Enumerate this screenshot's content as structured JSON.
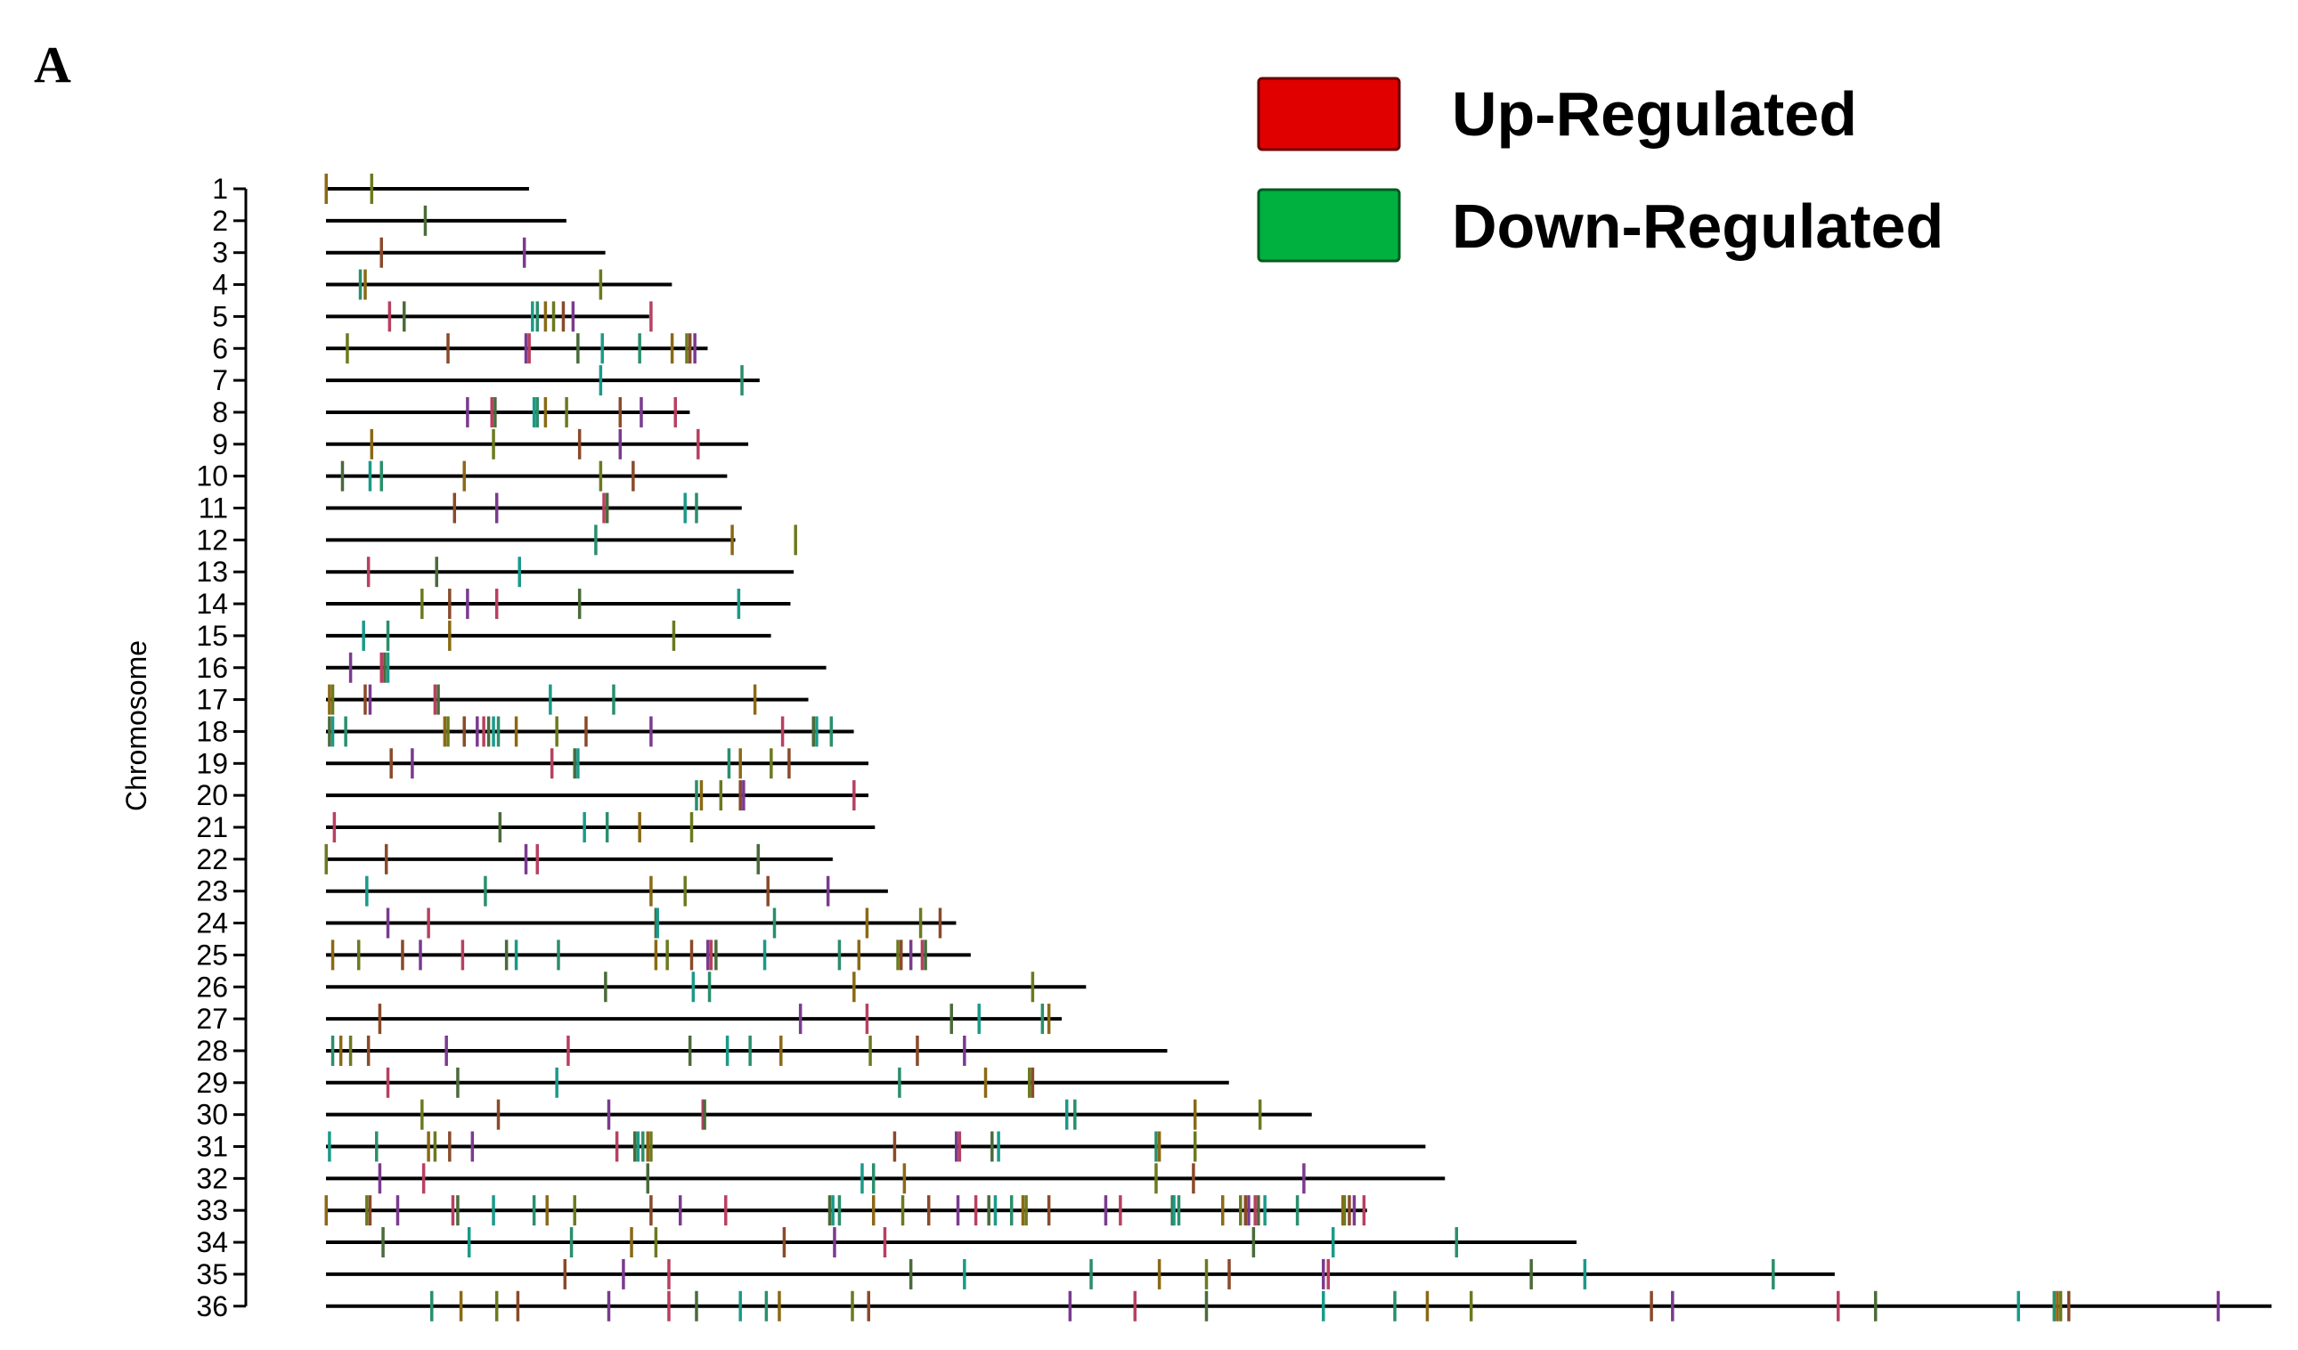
{
  "panel_label": "A",
  "legend": [
    {
      "label": "Up-Regulated",
      "color": "#e00000"
    },
    {
      "label": "Down-Regulated",
      "color": "#00b140"
    }
  ],
  "chart_data": {
    "type": "chromosome-map",
    "title": "",
    "xlabel": "",
    "ylabel": "Chromosome",
    "grid": false,
    "legend_position": "top-right",
    "colors": {
      "up": "#e00000",
      "down": "#00b140",
      "other": [
        "#8b6914",
        "#7a3b8f",
        "#1a9a8a",
        "#6b7a1f",
        "#b84060",
        "#2a8f6a",
        "#8a4a2a",
        "#4a6b3a"
      ]
    },
    "x_range": [
      0,
      1.2
    ],
    "chromosomes": [
      {
        "label": "1",
        "length": 0.125,
        "markers": [
          0.0,
          0.028
        ]
      },
      {
        "label": "2",
        "length": 0.148,
        "markers": [
          0.061
        ]
      },
      {
        "label": "3",
        "length": 0.172,
        "markers": [
          0.034,
          0.122
        ]
      },
      {
        "label": "4",
        "length": 0.213,
        "markers": [
          0.021,
          0.024,
          0.169
        ]
      },
      {
        "label": "5",
        "length": 0.199,
        "markers": [
          0.039,
          0.048,
          0.127,
          0.13,
          0.135,
          0.14,
          0.146,
          0.152,
          0.2
        ]
      },
      {
        "label": "6",
        "length": 0.235,
        "markers": [
          0.013,
          0.075,
          0.123,
          0.125,
          0.155,
          0.17,
          0.193,
          0.213,
          0.222,
          0.224,
          0.227
        ]
      },
      {
        "label": "7",
        "length": 0.267,
        "markers": [
          0.169,
          0.256
        ]
      },
      {
        "label": "8",
        "length": 0.224,
        "markers": [
          0.087,
          0.102,
          0.104,
          0.128,
          0.13,
          0.135,
          0.148,
          0.181,
          0.194,
          0.215
        ]
      },
      {
        "label": "9",
        "length": 0.26,
        "markers": [
          0.028,
          0.103,
          0.156,
          0.181,
          0.229
        ]
      },
      {
        "label": "10",
        "length": 0.247,
        "markers": [
          0.01,
          0.027,
          0.034,
          0.085,
          0.169,
          0.189
        ]
      },
      {
        "label": "11",
        "length": 0.256,
        "markers": [
          0.079,
          0.105,
          0.171,
          0.173,
          0.221,
          0.228
        ]
      },
      {
        "label": "12",
        "length": 0.252,
        "markers": [
          0.166,
          0.25,
          0.289
        ]
      },
      {
        "label": "13",
        "length": 0.288,
        "markers": [
          0.026,
          0.068,
          0.119
        ]
      },
      {
        "label": "14",
        "length": 0.286,
        "markers": [
          0.059,
          0.076,
          0.087,
          0.105,
          0.156,
          0.254
        ]
      },
      {
        "label": "15",
        "length": 0.274,
        "markers": [
          0.023,
          0.038,
          0.076,
          0.214
        ]
      },
      {
        "label": "16",
        "length": 0.308,
        "markers": [
          0.015,
          0.034,
          0.036,
          0.038
        ]
      },
      {
        "label": "17",
        "length": 0.297,
        "markers": [
          0.002,
          0.004,
          0.024,
          0.027,
          0.067,
          0.069,
          0.138,
          0.177,
          0.264
        ]
      },
      {
        "label": "18",
        "length": 0.325,
        "markers": [
          0.002,
          0.004,
          0.012,
          0.073,
          0.075,
          0.085,
          0.093,
          0.097,
          0.1,
          0.103,
          0.106,
          0.117,
          0.142,
          0.16,
          0.2,
          0.281,
          0.3,
          0.302,
          0.311
        ]
      },
      {
        "label": "19",
        "length": 0.334,
        "markers": [
          0.04,
          0.053,
          0.139,
          0.153,
          0.155,
          0.248,
          0.255,
          0.274,
          0.285
        ]
      },
      {
        "label": "20",
        "length": 0.334,
        "markers": [
          0.228,
          0.231,
          0.243,
          0.255,
          0.257,
          0.325
        ]
      },
      {
        "label": "21",
        "length": 0.338,
        "markers": [
          0.005,
          0.107,
          0.159,
          0.173,
          0.193,
          0.225
        ]
      },
      {
        "label": "22",
        "length": 0.312,
        "markers": [
          0.0,
          0.037,
          0.123,
          0.13,
          0.266
        ]
      },
      {
        "label": "23",
        "length": 0.346,
        "markers": [
          0.025,
          0.098,
          0.2,
          0.221,
          0.272,
          0.309
        ]
      },
      {
        "label": "24",
        "length": 0.388,
        "markers": [
          0.038,
          0.063,
          0.203,
          0.204,
          0.276,
          0.333,
          0.366,
          0.378
        ]
      },
      {
        "label": "25",
        "length": 0.397,
        "markers": [
          0.004,
          0.02,
          0.047,
          0.058,
          0.084,
          0.111,
          0.117,
          0.143,
          0.203,
          0.21,
          0.225,
          0.235,
          0.237,
          0.24,
          0.27,
          0.316,
          0.328,
          0.352,
          0.354,
          0.36,
          0.367,
          0.369
        ]
      },
      {
        "label": "26",
        "length": 0.468,
        "markers": [
          0.172,
          0.226,
          0.236,
          0.325,
          0.435
        ]
      },
      {
        "label": "27",
        "length": 0.453,
        "markers": [
          0.033,
          0.292,
          0.333,
          0.385,
          0.402,
          0.441,
          0.445
        ]
      },
      {
        "label": "28",
        "length": 0.518,
        "markers": [
          0.004,
          0.009,
          0.015,
          0.026,
          0.074,
          0.149,
          0.224,
          0.247,
          0.261,
          0.28,
          0.335,
          0.364,
          0.393
        ]
      },
      {
        "label": "29",
        "length": 0.556,
        "markers": [
          0.038,
          0.081,
          0.142,
          0.353,
          0.406,
          0.433,
          0.435
        ]
      },
      {
        "label": "30",
        "length": 0.607,
        "markers": [
          0.059,
          0.106,
          0.174,
          0.232,
          0.233,
          0.456,
          0.461,
          0.535,
          0.575
        ]
      },
      {
        "label": "31",
        "length": 0.677,
        "markers": [
          0.002,
          0.031,
          0.063,
          0.067,
          0.076,
          0.09,
          0.179,
          0.19,
          0.192,
          0.195,
          0.198,
          0.2,
          0.35,
          0.388,
          0.39,
          0.41,
          0.414,
          0.511,
          0.513,
          0.535
        ]
      },
      {
        "label": "32",
        "length": 0.689,
        "markers": [
          0.033,
          0.06,
          0.198,
          0.33,
          0.337,
          0.356,
          0.511,
          0.534,
          0.602
        ]
      },
      {
        "label": "33",
        "length": 0.641,
        "markers": [
          0.0,
          0.025,
          0.027,
          0.044,
          0.078,
          0.081,
          0.103,
          0.128,
          0.136,
          0.153,
          0.2,
          0.218,
          0.246,
          0.31,
          0.312,
          0.316,
          0.337,
          0.355,
          0.371,
          0.389,
          0.4,
          0.408,
          0.412,
          0.422,
          0.429,
          0.431,
          0.445,
          0.48,
          0.489,
          0.521,
          0.522,
          0.525,
          0.552,
          0.563,
          0.566,
          0.568,
          0.572,
          0.574,
          0.578,
          0.598,
          0.626,
          0.627,
          0.63,
          0.633,
          0.639
        ]
      },
      {
        "label": "34",
        "length": 0.77,
        "markers": [
          0.035,
          0.088,
          0.151,
          0.188,
          0.203,
          0.282,
          0.313,
          0.344,
          0.571,
          0.62,
          0.696
        ]
      },
      {
        "label": "35",
        "length": 0.929,
        "markers": [
          0.147,
          0.183,
          0.211,
          0.36,
          0.393,
          0.471,
          0.513,
          0.542,
          0.556,
          0.614,
          0.617,
          0.742,
          0.775,
          0.891
        ]
      },
      {
        "label": "36",
        "length": 1.198,
        "markers": [
          0.065,
          0.083,
          0.105,
          0.118,
          0.174,
          0.211,
          0.228,
          0.255,
          0.271,
          0.279,
          0.324,
          0.334,
          0.458,
          0.498,
          0.542,
          0.614,
          0.658,
          0.678,
          0.705,
          0.816,
          0.829,
          0.931,
          0.954,
          1.042,
          1.064,
          1.066,
          1.068,
          1.073,
          1.165
        ]
      }
    ]
  }
}
